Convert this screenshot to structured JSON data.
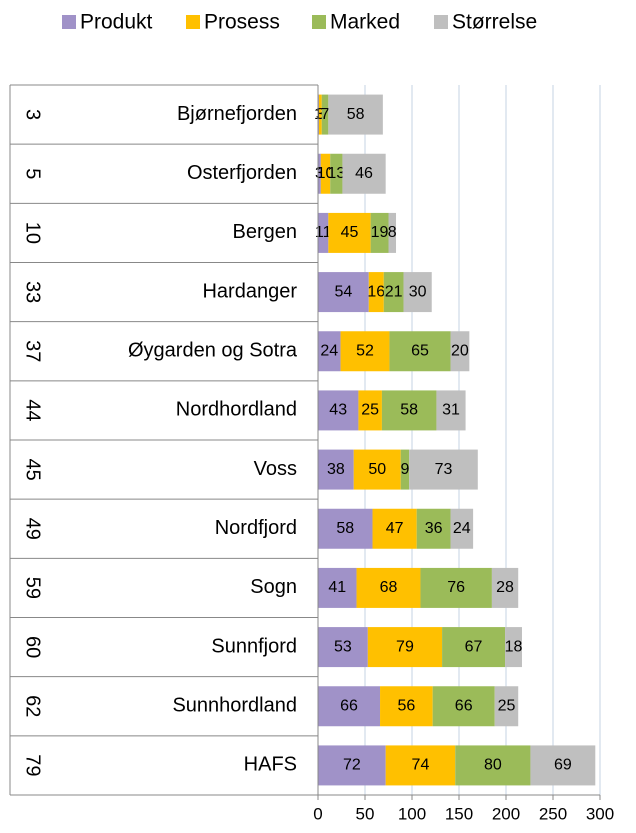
{
  "chart_data": {
    "type": "stacked-bar-horizontal",
    "categories": [
      "Bjørnefjorden",
      "Osterfjorden",
      "Bergen",
      "Hardanger",
      "Øygarden og Sotra",
      "Nordhordland",
      "Voss",
      "Nordfjord",
      "Sogn",
      "Sunnfjord",
      "Sunnhordland",
      "HAFS"
    ],
    "rank_labels": [
      3,
      5,
      10,
      33,
      37,
      44,
      45,
      49,
      59,
      60,
      62,
      79
    ],
    "series": [
      {
        "name": "Produkt",
        "color": "#a092c8",
        "values": [
          1,
          3,
          11,
          54,
          24,
          43,
          38,
          58,
          41,
          53,
          66,
          72
        ]
      },
      {
        "name": "Prosess",
        "color": "#ffc000",
        "values": [
          3,
          10,
          45,
          16,
          52,
          25,
          50,
          47,
          68,
          79,
          56,
          74
        ]
      },
      {
        "name": "Marked",
        "color": "#9bbb59",
        "values": [
          7,
          13,
          19,
          21,
          65,
          58,
          9,
          36,
          76,
          67,
          66,
          80
        ]
      },
      {
        "name": "Størrelse",
        "color": "#bfbfbf",
        "values": [
          58,
          46,
          8,
          30,
          20,
          31,
          73,
          24,
          28,
          18,
          25,
          69
        ]
      }
    ],
    "xlim": [
      0,
      300
    ],
    "xticks": [
      0,
      50,
      100,
      150,
      200,
      250,
      300
    ],
    "grid": true
  }
}
